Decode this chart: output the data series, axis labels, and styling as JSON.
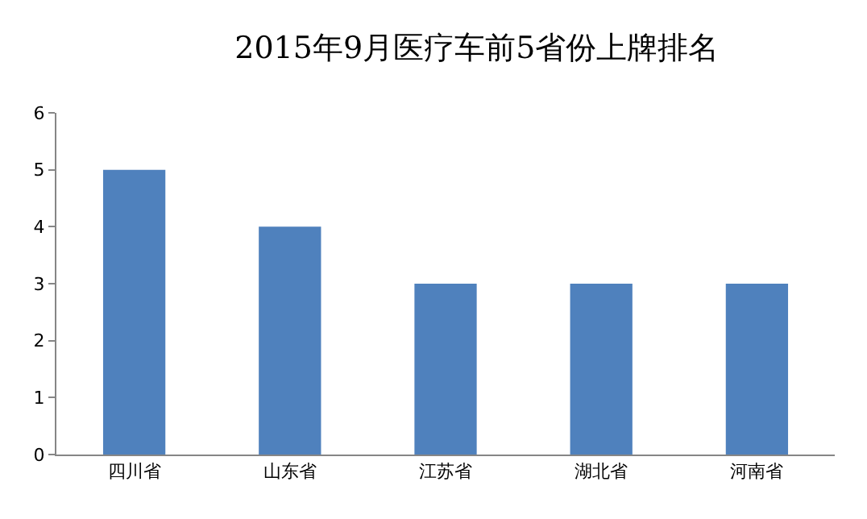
{
  "chart_data": {
    "type": "bar",
    "title": "2015年9月医疗车前5省份上牌排名",
    "categories": [
      "四川省",
      "山东省",
      "江苏省",
      "湖北省",
      "河南省"
    ],
    "values": [
      5,
      4,
      3,
      3,
      3
    ],
    "color": "#4f81bd",
    "ylim": [
      0,
      6
    ],
    "yticks": [
      0,
      1,
      2,
      3,
      4,
      5,
      6
    ],
    "grid": false
  }
}
